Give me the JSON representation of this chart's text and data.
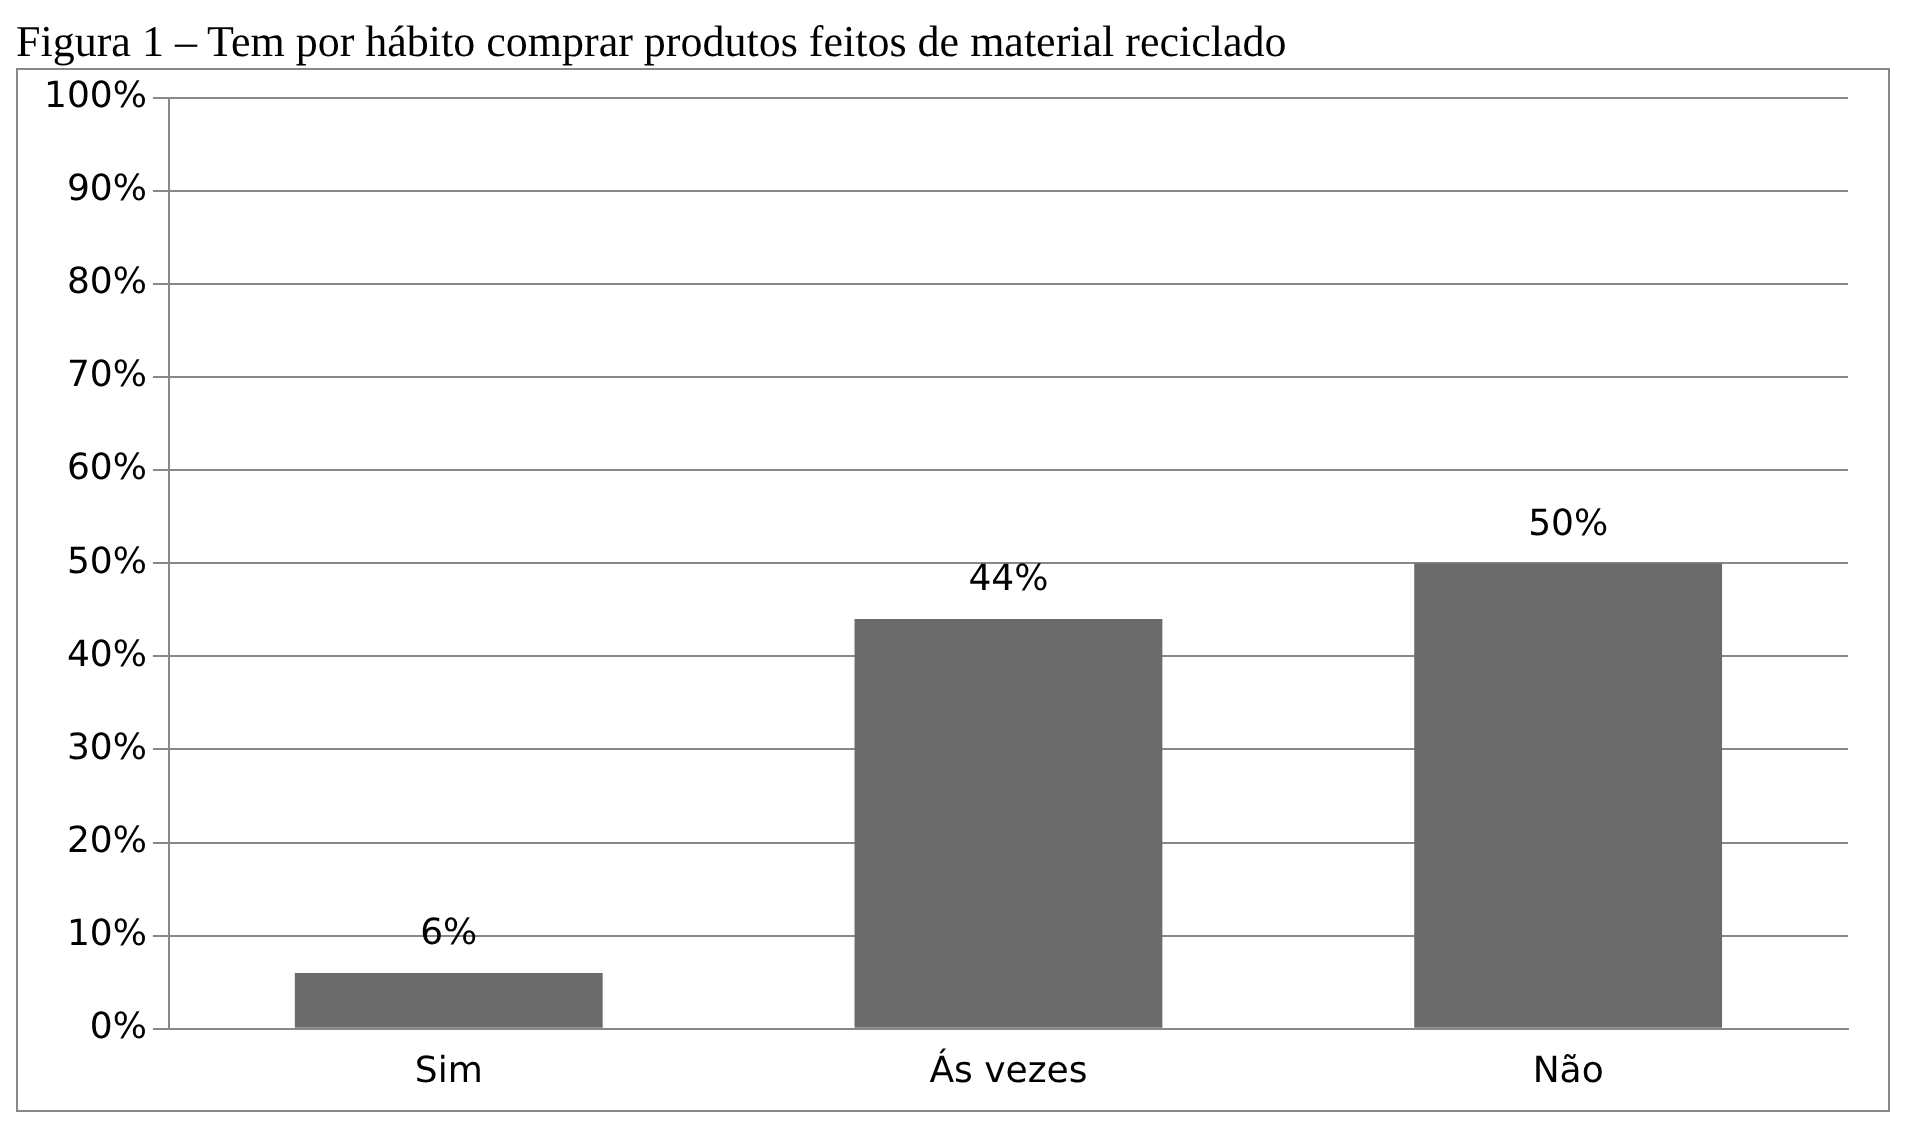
{
  "chart_data": {
    "type": "bar",
    "title": "Figura 1 – Tem por hábito comprar produtos feitos de material reciclado",
    "categories": [
      "Sim",
      "Ás vezes",
      "Não"
    ],
    "values": [
      6,
      44,
      50
    ],
    "color": "#6b6b6b",
    "value_labels": [
      "6%",
      "44%",
      "50%"
    ],
    "ylim": [
      0,
      100
    ],
    "yticks": [
      {
        "value": 0,
        "label": "0%"
      },
      {
        "value": 10,
        "label": "10%"
      },
      {
        "value": 20,
        "label": "20%"
      },
      {
        "value": 30,
        "label": "30%"
      },
      {
        "value": 40,
        "label": "40%"
      },
      {
        "value": 50,
        "label": "50%"
      },
      {
        "value": 60,
        "label": "60%"
      },
      {
        "value": 70,
        "label": "70%"
      },
      {
        "value": 80,
        "label": "80%"
      },
      {
        "value": 90,
        "label": "90%"
      },
      {
        "value": 100,
        "label": "100%"
      }
    ],
    "grid": "y",
    "legend": false
  }
}
